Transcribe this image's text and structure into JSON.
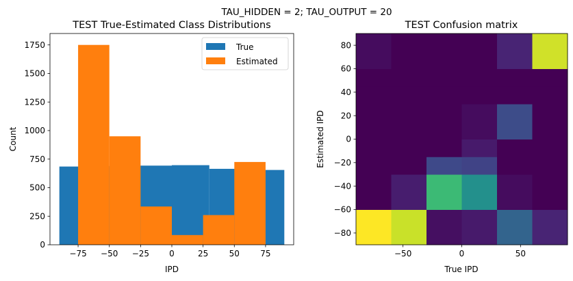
{
  "suptitle": "TAU_HIDDEN = 2; TAU_OUTPUT = 20",
  "chart_data": [
    {
      "type": "bar",
      "subtype": "overlapping histogram",
      "title": "TEST True-Estimated Class Distributions",
      "xlabel": "IPD",
      "ylabel": "Count",
      "xlim": [
        -97.5,
        97.5
      ],
      "ylim": [
        0,
        1850
      ],
      "xticks": [
        -75,
        -50,
        -25,
        0,
        25,
        50,
        75
      ],
      "xtick_labels": [
        "−75",
        "−50",
        "−25",
        "0",
        "25",
        "50",
        "75"
      ],
      "yticks": [
        0,
        250,
        500,
        750,
        1000,
        1250,
        1500,
        1750
      ],
      "ytick_labels": [
        "0",
        "250",
        "500",
        "750",
        "1000",
        "1250",
        "1500",
        "1750"
      ],
      "legend": {
        "position": "top-right",
        "entries": [
          "True",
          "Estimated"
        ]
      },
      "series": [
        {
          "name": "True",
          "color": "#1f77b4",
          "bin_edges": [
            -90,
            -60,
            -30,
            0,
            30,
            60,
            90
          ],
          "values": [
            685,
            690,
            693,
            697,
            665,
            655
          ]
        },
        {
          "name": "Estimated",
          "color": "#ff7f0e",
          "bin_edges": [
            -75,
            -50,
            -25,
            0,
            25,
            50,
            75
          ],
          "values": [
            1750,
            950,
            335,
            85,
            260,
            725
          ]
        }
      ]
    },
    {
      "type": "heatmap",
      "title": "TEST Confusion matrix",
      "xlabel": "True IPD",
      "ylabel": "Estimated IPD",
      "colormap": "viridis",
      "xlim": [
        -90,
        90
      ],
      "ylim": [
        -90,
        90
      ],
      "xticks": [
        -50,
        0,
        50
      ],
      "xtick_labels": [
        "−50",
        "0",
        "50"
      ],
      "yticks": [
        -80,
        -60,
        -40,
        -20,
        0,
        20,
        40,
        60,
        80
      ],
      "ytick_labels": [
        "−80",
        "−60",
        "−40",
        "−20",
        "0",
        "20",
        "40",
        "60",
        "80"
      ],
      "x_bin_edges": [
        -90,
        -60,
        -30,
        0,
        30,
        60,
        90
      ],
      "y_bin_edges": [
        -90,
        -60,
        -30,
        -15,
        0,
        30,
        45,
        60,
        90
      ],
      "rows_bottom_to_top": [
        [
          1.0,
          0.92,
          0.04,
          0.07,
          0.32,
          0.1
        ],
        [
          0.0,
          0.08,
          0.68,
          0.5,
          0.03,
          0.0
        ],
        [
          0.0,
          0.0,
          0.22,
          0.2,
          0.0,
          0.0
        ],
        [
          0.0,
          0.0,
          0.0,
          0.07,
          0.0,
          0.0
        ],
        [
          0.0,
          0.0,
          0.0,
          0.03,
          0.23,
          0.0
        ],
        [
          0.0,
          0.0,
          0.0,
          0.0,
          0.0,
          0.0
        ],
        [
          0.0,
          0.0,
          0.0,
          0.0,
          0.0,
          0.0
        ],
        [
          0.03,
          0.0,
          0.0,
          0.0,
          0.1,
          0.93
        ]
      ]
    }
  ]
}
